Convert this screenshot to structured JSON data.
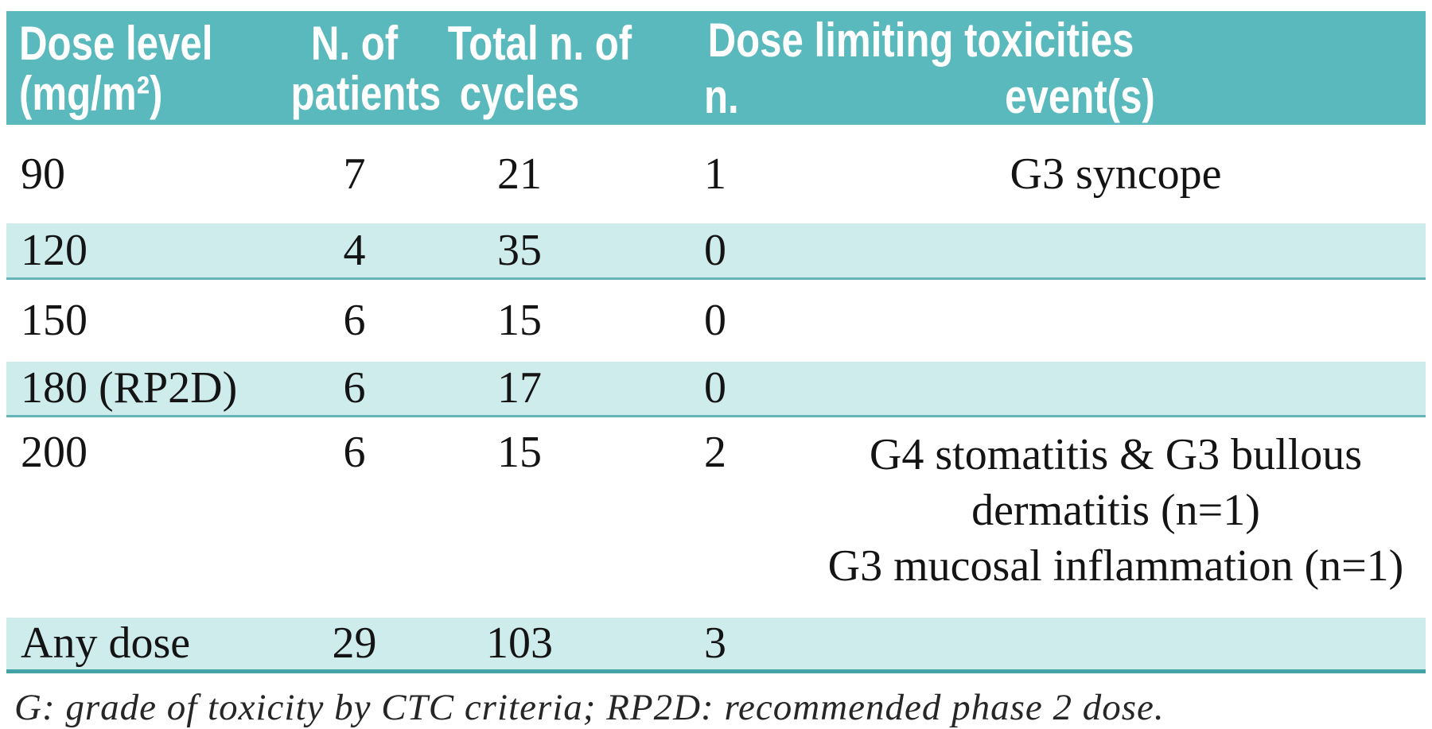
{
  "table": {
    "header": {
      "dose_line1": "Dose level",
      "dose_line2": "(mg/m²)",
      "patients_line1": "N. of",
      "patients_line2": "patients",
      "cycles_line1": "Total n. of",
      "cycles_line2": "cycles",
      "dlt_group": "Dose limiting toxicities",
      "dlt_n": "n.",
      "dlt_events": "event(s)"
    },
    "rows": [
      {
        "dose": "90",
        "patients": "7",
        "cycles": "21",
        "dlt_n": "1",
        "events": [
          "G3 syncope"
        ]
      },
      {
        "dose": "120",
        "patients": "4",
        "cycles": "35",
        "dlt_n": "0",
        "events": []
      },
      {
        "dose": "150",
        "patients": "6",
        "cycles": "15",
        "dlt_n": "0",
        "events": []
      },
      {
        "dose": "180 (RP2D)",
        "patients": "6",
        "cycles": "17",
        "dlt_n": "0",
        "events": []
      },
      {
        "dose": "200",
        "patients": "6",
        "cycles": "15",
        "dlt_n": "2",
        "events": [
          "G4 stomatitis & G3 bullous",
          "dermatitis (n=1)",
          "G3 mucosal inflammation (n=1)"
        ]
      },
      {
        "dose": "Any dose",
        "patients": "29",
        "cycles": "103",
        "dlt_n": "3",
        "events": []
      }
    ],
    "footnote": "G: grade of toxicity by CTC criteria; RP2D: recommended phase 2 dose."
  },
  "colors": {
    "page_bg": "#ffffff",
    "header_bg": "#5ab9bc",
    "shaded_bg": "#cfeced",
    "row_border": "#65b4b7",
    "strong_border": "#43a2a6",
    "header_text": "#ffffff",
    "body_text": "#141414",
    "footnote_text": "#262626"
  }
}
